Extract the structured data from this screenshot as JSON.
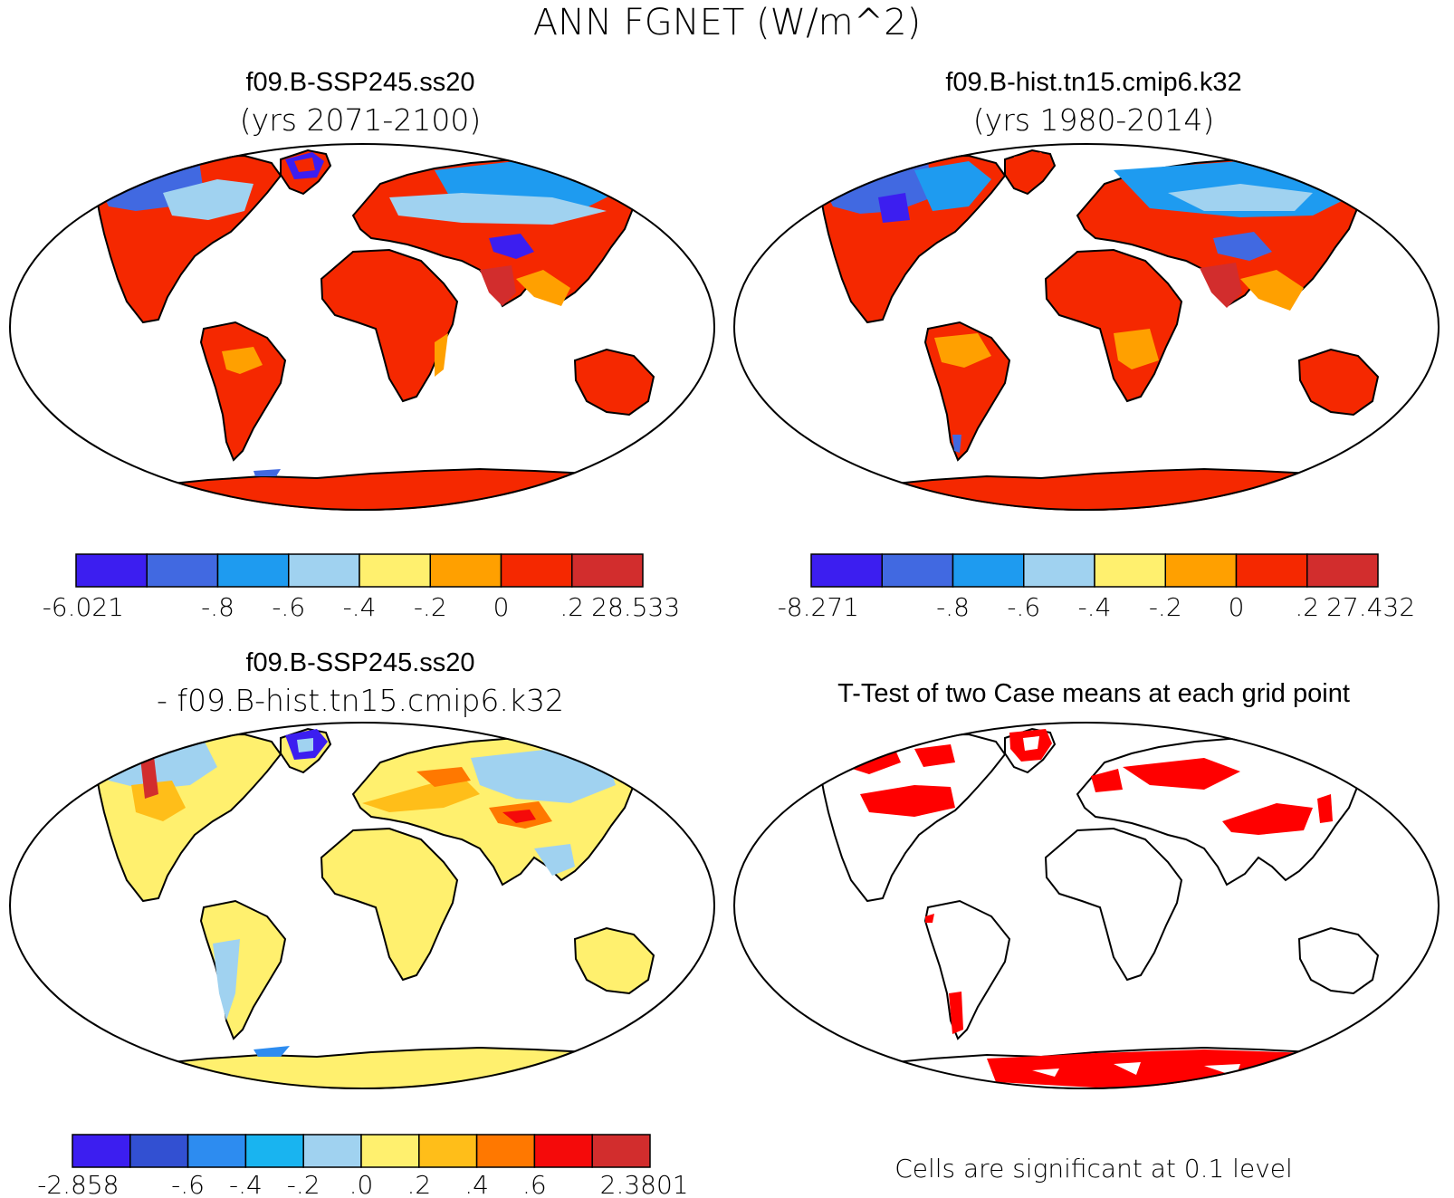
{
  "main_title": "ANN FGNET (W/m^2)",
  "colors": {
    "c_purple": "#3c1ef0",
    "c_blue": "#4169e1",
    "c_sky": "#1e9bf0",
    "c_light": "#a0d2f0",
    "c_yellow": "#fff06e",
    "c_orange": "#ffa000",
    "c_red": "#f52800",
    "c_dkred": "#d22d2d",
    "d_purple": "#3c1ef0",
    "d_blue": "#3250d2",
    "d_mid": "#2d8cf0",
    "d_cyan": "#19b4f0",
    "d_light": "#a0d2f0",
    "d_yellow": "#fff06e",
    "d_amber": "#ffbe19",
    "d_orange": "#ff7800",
    "d_red": "#f50a0a",
    "d_dkred": "#d22d2d",
    "sig": "#ff0000"
  },
  "panels": [
    {
      "title": "f09.B-SSP245.ss20",
      "subtitle": "(yrs 2071-2100)",
      "colorbar": {
        "colors": [
          "#3c1ef0",
          "#4169e1",
          "#1e9bf0",
          "#a0d2f0",
          "#fff06e",
          "#ffa000",
          "#f52800",
          "#d22d2d"
        ],
        "labels": [
          "-6.021",
          "-.8",
          "-.6",
          "-.4",
          "-.2",
          "0",
          ".2",
          "28.533"
        ]
      }
    },
    {
      "title": "f09.B-hist.tn15.cmip6.k32",
      "subtitle": "(yrs 1980-2014)",
      "colorbar": {
        "colors": [
          "#3c1ef0",
          "#4169e1",
          "#1e9bf0",
          "#a0d2f0",
          "#fff06e",
          "#ffa000",
          "#f52800",
          "#d22d2d"
        ],
        "labels": [
          "-8.271",
          "-.8",
          "-.6",
          "-.4",
          "-.2",
          "0",
          ".2",
          "27.432"
        ]
      }
    },
    {
      "title": "f09.B-SSP245.ss20",
      "subtitle": "- f09.B-hist.tn15.cmip6.k32",
      "colorbar": {
        "colors": [
          "#3c1ef0",
          "#3250d2",
          "#2d8cf0",
          "#19b4f0",
          "#a0d2f0",
          "#fff06e",
          "#ffbe19",
          "#ff7800",
          "#f50a0a",
          "#d22d2d"
        ],
        "labels": [
          "-2.858",
          "-.6",
          "-.4",
          "-.2",
          ".0",
          ".2",
          ".4",
          ".6",
          "2.3801"
        ]
      }
    },
    {
      "title": "T-Test of two Case means at each grid point",
      "footnote": "Cells are significant at 0.1 level"
    }
  ]
}
